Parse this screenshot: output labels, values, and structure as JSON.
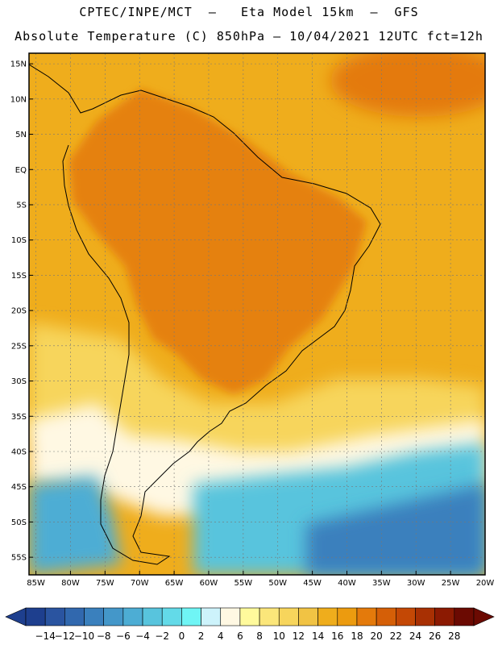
{
  "header": {
    "line1": "CPTEC/INPE/MCT  –   Eta Model 15km  –  GFS",
    "line2": "Absolute Temperature (C) 850hPa – 10/04/2021 12UTC fct=12h"
  },
  "map": {
    "lat_labels": [
      "15N",
      "10N",
      "5N",
      "EQ",
      "5S",
      "10S",
      "15S",
      "20S",
      "25S",
      "30S",
      "35S",
      "40S",
      "45S",
      "50S",
      "55S"
    ],
    "lon_labels": [
      "85W",
      "80W",
      "75W",
      "70W",
      "65W",
      "60W",
      "55W",
      "50W",
      "45W",
      "40W",
      "35W",
      "30W",
      "25W",
      "20W"
    ],
    "lat_range": [
      -57.5,
      16.5
    ],
    "lon_range": [
      -86,
      -20
    ]
  },
  "colorbar": {
    "labels": [
      "-14",
      "-12",
      "-10",
      "-8",
      "-6",
      "-4",
      "-2",
      "0",
      "2",
      "4",
      "6",
      "8",
      "10",
      "12",
      "14",
      "16",
      "18",
      "20",
      "22",
      "24",
      "26",
      "28"
    ],
    "colors": [
      "#1e3f8e",
      "#2a54a0",
      "#3168ae",
      "#3a80bd",
      "#4497c9",
      "#4dadd4",
      "#58c4dd",
      "#63dae8",
      "#6ff5f5",
      "#cdf3fb",
      "#fff8e3",
      "#fffa9c",
      "#fbe67a",
      "#f7d55c",
      "#f1c344",
      "#efad1c",
      "#ec9b0f",
      "#e47a0b",
      "#d55f07",
      "#c44805",
      "#a83003",
      "#8c1a02",
      "#6b0a02"
    ],
    "palette": {
      "warm_ocean": "#efad1c",
      "hot": "#e47a0b",
      "mild": "#f7d55c",
      "cool": "#fff8e3",
      "cold": "#4dadd4"
    }
  }
}
